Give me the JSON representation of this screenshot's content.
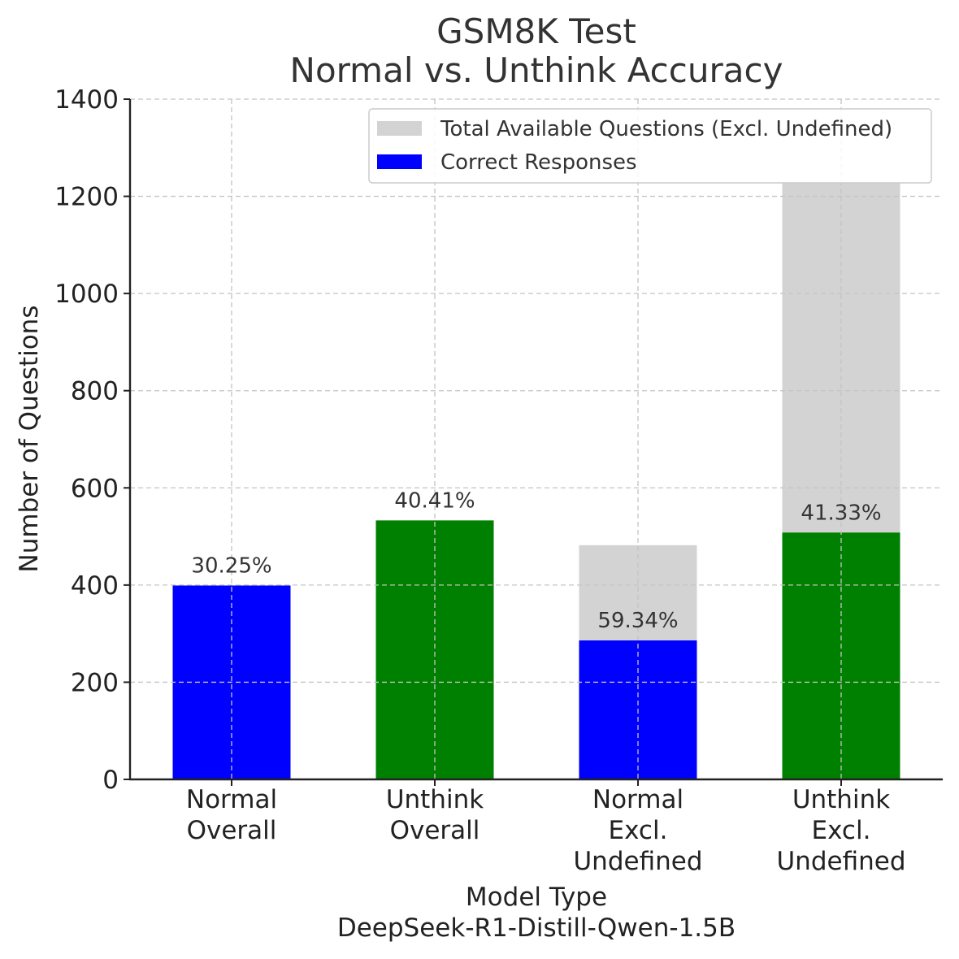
{
  "chart_data": {
    "type": "bar",
    "title": [
      "GSM8K Test",
      "Normal vs. Unthink Accuracy"
    ],
    "xlabel": [
      "Model Type",
      "DeepSeek-R1-Distill-Qwen-1.5B"
    ],
    "ylabel": "Number of Questions",
    "ylim": [
      0,
      1400
    ],
    "yticks": [
      0,
      200,
      400,
      600,
      800,
      1000,
      1200,
      1400
    ],
    "grid": true,
    "legend_position": "top-right",
    "categories": [
      [
        "Normal",
        "Overall"
      ],
      [
        "Unthink",
        "Overall"
      ],
      [
        "Normal",
        "Excl.",
        "Undefined"
      ],
      [
        "Unthink",
        "Excl.",
        "Undefined"
      ]
    ],
    "series": [
      {
        "name": "Total Available Questions (Excl. Undefined)",
        "color": "#d3d3d3",
        "values": [
          null,
          null,
          482,
          1229
        ]
      },
      {
        "name": "Correct Responses",
        "color": "#0000ff",
        "values": [
          399,
          533,
          286,
          508
        ],
        "bar_colors": [
          "#0000ff",
          "#008000",
          "#0000ff",
          "#008000"
        ]
      }
    ],
    "data_labels": [
      "30.25%",
      "40.41%",
      "59.34%",
      "41.33%"
    ]
  }
}
